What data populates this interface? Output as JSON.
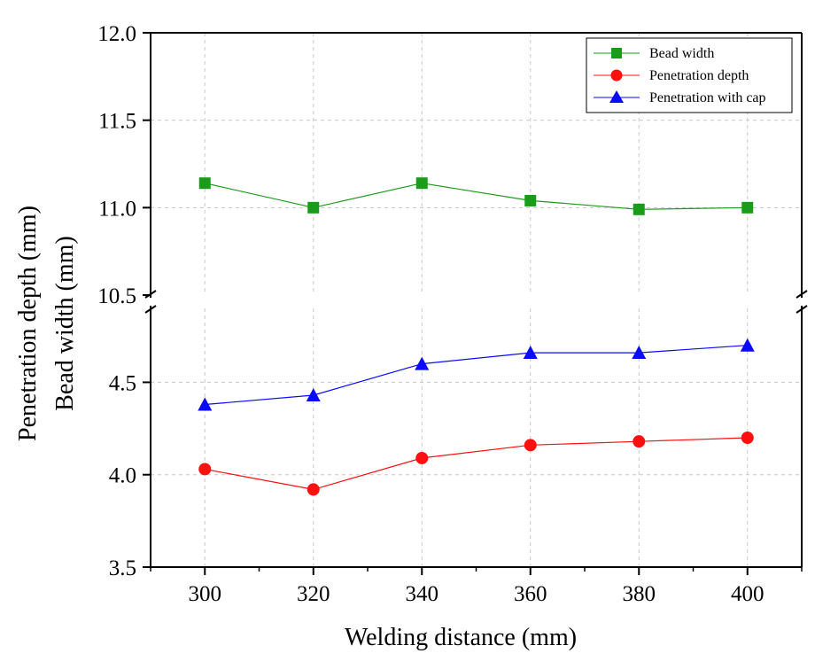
{
  "chart_data": {
    "type": "line",
    "xlabel": "Welding distance (mm)",
    "ylabel_lines": [
      "Penetration depth (mm)",
      "Bead width (mm)"
    ],
    "x": [
      300,
      320,
      340,
      360,
      380,
      400
    ],
    "xlim": [
      290,
      410
    ],
    "x_ticks": [
      300,
      320,
      340,
      360,
      380,
      400
    ],
    "x_tick_labels": [
      "300",
      "320",
      "340",
      "360",
      "380",
      "400"
    ],
    "y_upper_segment": {
      "ylim": [
        10.5,
        12.0
      ],
      "ticks": [
        10.5,
        11.0,
        11.5,
        12.0
      ],
      "tick_labels": [
        "10.5",
        "11.0",
        "11.5",
        "12.0"
      ]
    },
    "y_lower_segment": {
      "ylim": [
        3.5,
        4.9
      ],
      "ticks": [
        3.5,
        4.0,
        4.5
      ],
      "tick_labels": [
        "3.5",
        "4.0",
        "4.5"
      ]
    },
    "axis_break": true,
    "grid": true,
    "legend_position": "top-right",
    "series": [
      {
        "name": "Bead width",
        "segment": "upper",
        "marker": "square",
        "color": "#1a9c1a",
        "values": [
          11.14,
          11.0,
          11.14,
          11.04,
          10.99,
          11.0
        ]
      },
      {
        "name": "Penetration depth",
        "segment": "lower",
        "marker": "circle",
        "color": "#ff1010",
        "values": [
          4.03,
          3.92,
          4.09,
          4.16,
          4.18,
          4.2
        ]
      },
      {
        "name": "Penetration with cap",
        "segment": "lower",
        "marker": "triangle",
        "color": "#0a0aff",
        "values": [
          4.38,
          4.43,
          4.6,
          4.66,
          4.66,
          4.7
        ]
      }
    ]
  }
}
